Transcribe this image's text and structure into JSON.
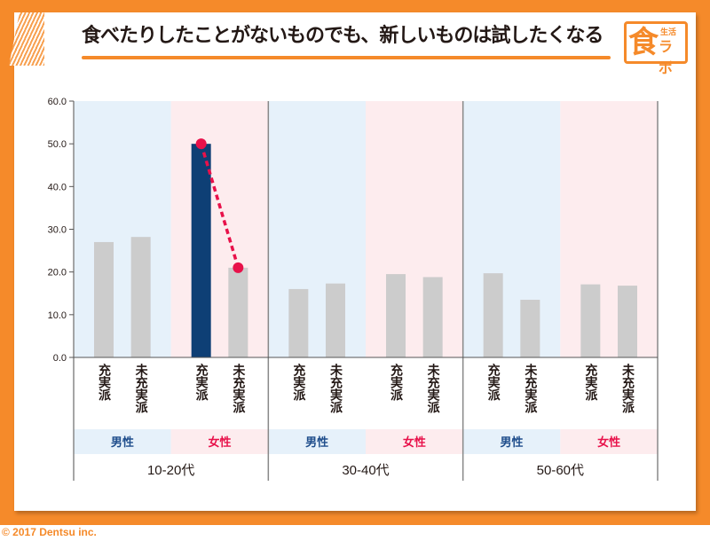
{
  "title": "食べたりしたことがないものでも、新しいものは試したくなる",
  "logo": {
    "big": "食",
    "small1": "生活",
    "small2": "ラボ"
  },
  "footer": "© 2017 Dentsu inc.",
  "colors": {
    "orange": "#f58a2a",
    "highlight": "#0e3f75",
    "bar": "#cccccc",
    "line": "#e8114a",
    "male_bg": "#e6f1fa",
    "female_bg": "#fdecee",
    "male_text": "#1f4e8c",
    "female_text": "#e8114a"
  },
  "chart_data": {
    "type": "bar",
    "ylim": [
      0,
      60
    ],
    "yticks": [
      "0.0",
      "10.0",
      "20.0",
      "30.0",
      "40.0",
      "50.0",
      "60.0"
    ],
    "groups": [
      {
        "age": "10-20代",
        "genders": [
          {
            "gender": "男性",
            "bars": [
              {
                "label": "充実派",
                "value": 27.0
              },
              {
                "label": "未充実派",
                "value": 28.2
              }
            ]
          },
          {
            "gender": "女性",
            "bars": [
              {
                "label": "充実派",
                "value": 50.0,
                "highlight": true
              },
              {
                "label": "未充実派",
                "value": 21.0
              }
            ]
          }
        ]
      },
      {
        "age": "30-40代",
        "genders": [
          {
            "gender": "男性",
            "bars": [
              {
                "label": "充実派",
                "value": 16.0
              },
              {
                "label": "未充実派",
                "value": 17.3
              }
            ]
          },
          {
            "gender": "女性",
            "bars": [
              {
                "label": "充実派",
                "value": 19.5
              },
              {
                "label": "未充実派",
                "value": 18.8
              }
            ]
          }
        ]
      },
      {
        "age": "50-60代",
        "genders": [
          {
            "gender": "男性",
            "bars": [
              {
                "label": "充実派",
                "value": 19.7
              },
              {
                "label": "未充実派",
                "value": 13.5
              }
            ]
          },
          {
            "gender": "女性",
            "bars": [
              {
                "label": "充実派",
                "value": 17.1
              },
              {
                "label": "未充実派",
                "value": 16.8
              }
            ]
          }
        ]
      }
    ],
    "annotation": {
      "type": "dashed-line",
      "from": "10-20代 女性 充実派",
      "to": "10-20代 女性 未充実派"
    }
  }
}
